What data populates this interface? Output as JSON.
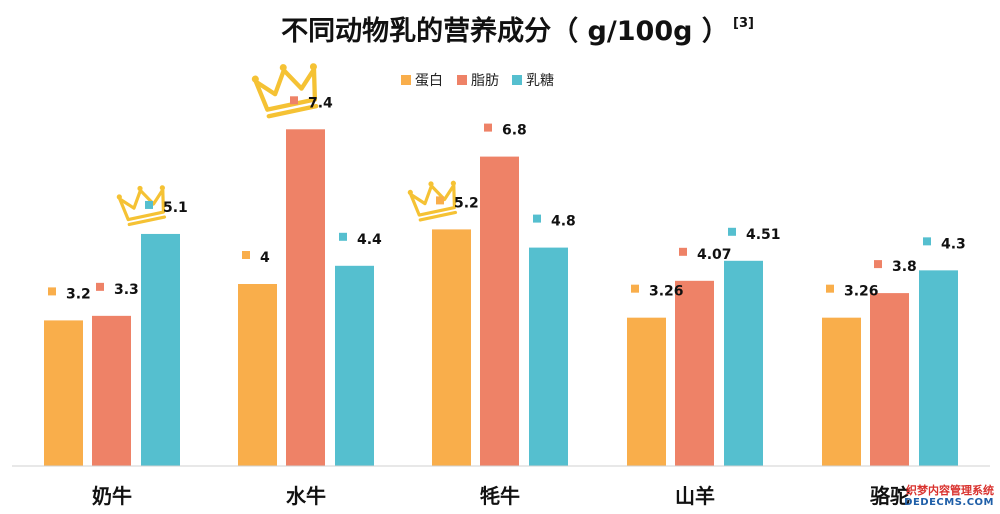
{
  "chart_data": {
    "type": "bar",
    "title": "不同动物乳的营养成分（ g/100g ）",
    "title_reference": "[3]",
    "categories": [
      "奶牛",
      "水牛",
      "牦牛",
      "山羊",
      "骆驼"
    ],
    "series": [
      {
        "name": "蛋白",
        "color": "#F9AE4B",
        "values": [
          3.2,
          4,
          5.2,
          3.26,
          3.26
        ],
        "labels": [
          "3.2",
          "4",
          "5.2",
          "3.26",
          "3.26"
        ]
      },
      {
        "name": "脂肪",
        "color": "#EE8267",
        "values": [
          3.3,
          7.4,
          6.8,
          4.07,
          3.8
        ],
        "labels": [
          "3.3",
          "7.4",
          "6.8",
          "4.07",
          "3.8"
        ]
      },
      {
        "name": "乳糖",
        "color": "#55BFCF",
        "values": [
          5.1,
          4.4,
          4.8,
          4.51,
          4.3
        ],
        "labels": [
          "5.1",
          "4.4",
          "4.8",
          "4.51",
          "4.3"
        ]
      }
    ],
    "crowns": [
      {
        "category": "奶牛",
        "series": "乳糖"
      },
      {
        "category": "水牛",
        "series": "脂肪"
      },
      {
        "category": "牦牛",
        "series": "蛋白"
      }
    ],
    "ylim": [
      0,
      8
    ],
    "xlabel": "",
    "ylabel": "",
    "grid": false,
    "legend_position": "top-center",
    "crown_color": "#F5C234"
  },
  "watermark": {
    "line1": "织梦内容管理系统",
    "line2": "DEDECMS.COM"
  }
}
